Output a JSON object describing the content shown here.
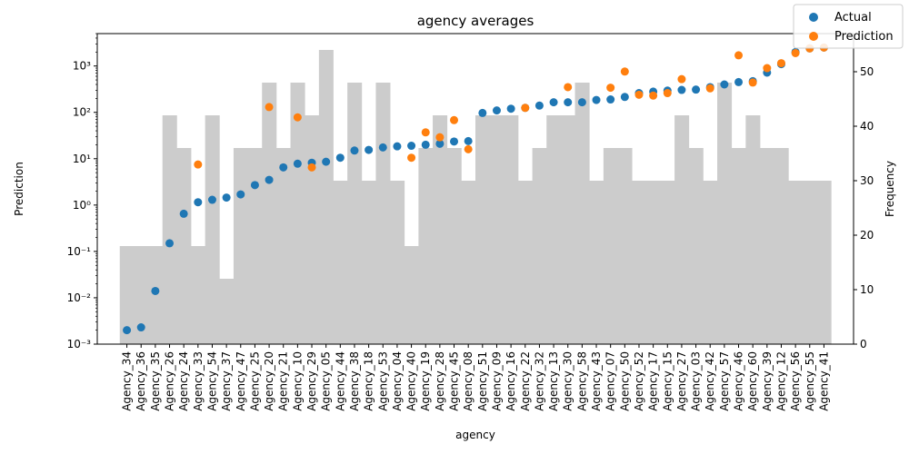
{
  "chart_data": {
    "type": "scatter",
    "title": "agency averages",
    "xlabel": "agency",
    "ylabel": "Prediction",
    "y2label": "Frequency",
    "yscale": "log",
    "ylim": [
      0.001,
      5000
    ],
    "yticks": [
      0.001,
      0.01,
      0.1,
      1,
      10,
      100,
      1000
    ],
    "yticklabels": [
      "10⁻³",
      "10⁻²",
      "10⁻¹",
      "10⁰",
      "10¹",
      "10²",
      "10³"
    ],
    "y2lim": [
      0,
      57
    ],
    "y2ticks": [
      0,
      10,
      20,
      30,
      40,
      50
    ],
    "y2ticklabels": [
      "0",
      "10",
      "20",
      "30",
      "40",
      "50"
    ],
    "grid": false,
    "legend": {
      "position": "top-right",
      "entries": [
        "Actual",
        "Prediction"
      ]
    },
    "colors": {
      "actual": "#1f77b4",
      "prediction": "#ff7f0e",
      "frequency": "#cccccc"
    },
    "categories": [
      "Agency_34",
      "Agency_36",
      "Agency_35",
      "Agency_26",
      "Agency_24",
      "Agency_33",
      "Agency_54",
      "Agency_37",
      "Agency_47",
      "Agency_25",
      "Agency_20",
      "Agency_21",
      "Agency_10",
      "Agency_29",
      "Agency_05",
      "Agency_44",
      "Agency_38",
      "Agency_18",
      "Agency_53",
      "Agency_04",
      "Agency_40",
      "Agency_19",
      "Agency_28",
      "Agency_45",
      "Agency_08",
      "Agency_51",
      "Agency_09",
      "Agency_16",
      "Agency_22",
      "Agency_32",
      "Agency_13",
      "Agency_30",
      "Agency_58",
      "Agency_43",
      "Agency_07",
      "Agency_50",
      "Agency_52",
      "Agency_17",
      "Agency_15",
      "Agency_27",
      "Agency_03",
      "Agency_42",
      "Agency_57",
      "Agency_46",
      "Agency_60",
      "Agency_39",
      "Agency_12",
      "Agency_56",
      "Agency_55",
      "Agency_41"
    ],
    "series": [
      {
        "name": "Actual",
        "values": [
          0.002,
          0.0023,
          0.014,
          0.15,
          0.65,
          1.15,
          1.3,
          1.45,
          1.7,
          2.7,
          3.5,
          6.5,
          7.8,
          8.2,
          8.6,
          10.5,
          15,
          15.5,
          17.5,
          18.5,
          19,
          20,
          21,
          23.5,
          24,
          97,
          110,
          120,
          125,
          140,
          165,
          165,
          165,
          185,
          190,
          215,
          260,
          280,
          295,
          305,
          310,
          350,
          400,
          450,
          470,
          720,
          1100,
          2000,
          2400,
          2500
        ]
      },
      {
        "name": "Prediction",
        "values": [
          null,
          null,
          null,
          null,
          null,
          7.5,
          null,
          null,
          null,
          null,
          130,
          null,
          78,
          6.5,
          null,
          null,
          null,
          null,
          null,
          null,
          10.5,
          37,
          29,
          68,
          16,
          null,
          null,
          null,
          125,
          null,
          null,
          350,
          null,
          null,
          340,
          760,
          240,
          230,
          260,
          520,
          null,
          330,
          null,
          1700,
          440,
          900,
          1150,
          1900,
          2400,
          2500
        ]
      },
      {
        "name": "Frequency",
        "values": [
          18,
          18,
          18,
          42,
          36,
          18,
          42,
          12,
          36,
          36,
          48,
          36,
          48,
          42,
          54,
          30,
          48,
          30,
          48,
          30,
          18,
          36,
          42,
          36,
          30,
          42,
          42,
          42,
          30,
          36,
          42,
          42,
          48,
          30,
          36,
          36,
          30,
          30,
          30,
          42,
          36,
          30,
          48,
          36,
          42,
          36,
          36,
          30,
          30,
          30
        ]
      }
    ]
  },
  "legend": {
    "actual_label": "Actual",
    "prediction_label": "Prediction"
  }
}
